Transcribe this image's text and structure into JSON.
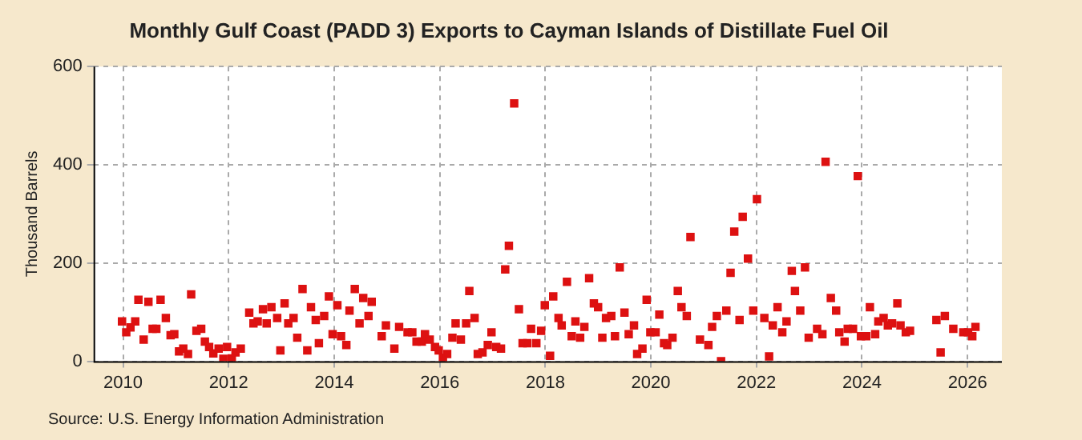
{
  "chart_data": {
    "type": "scatter",
    "title": "Monthly Gulf Coast (PADD 3) Exports to Cayman Islands of Distillate Fuel Oil",
    "ylabel": "Thousand Barrels",
    "annotations": [
      "Source: U.S. Energy Information Administration"
    ],
    "marker": "square",
    "grid": true,
    "color": "#dd1111",
    "x": [
      2009.98,
      2010.06,
      2010.14,
      2010.23,
      2010.29,
      2010.39,
      2010.48,
      2010.56,
      2010.63,
      2010.71,
      2010.81,
      2010.9,
      2010.97,
      2011.06,
      2011.14,
      2011.23,
      2011.29,
      2011.39,
      2011.48,
      2011.55,
      2011.63,
      2011.71,
      2011.81,
      2011.9,
      2011.97,
      2012.06,
      2012.13,
      2012.23,
      2012.39,
      2012.47,
      2012.55,
      2012.65,
      2012.72,
      2012.81,
      2012.92,
      2012.98,
      2013.06,
      2013.13,
      2013.23,
      2013.3,
      2013.4,
      2013.49,
      2013.56,
      2013.65,
      2013.71,
      2013.81,
      2013.9,
      2013.97,
      2014.06,
      2014.13,
      2014.23,
      2014.29,
      2014.39,
      2014.48,
      2014.55,
      2014.65,
      2014.71,
      2014.9,
      2014.98,
      2015.14,
      2015.23,
      2015.39,
      2015.48,
      2015.56,
      2015.66,
      2015.72,
      2015.81,
      2015.91,
      2015.98,
      2016.06,
      2016.14,
      2016.24,
      2016.3,
      2016.4,
      2016.5,
      2016.56,
      2016.66,
      2016.72,
      2016.81,
      2016.91,
      2016.98,
      2017.07,
      2017.16,
      2017.24,
      2017.31,
      2017.41,
      2017.5,
      2017.57,
      2017.66,
      2017.73,
      2017.83,
      2017.92,
      2017.99,
      2018.09,
      2018.15,
      2018.25,
      2018.31,
      2018.41,
      2018.5,
      2018.57,
      2018.66,
      2018.74,
      2018.83,
      2018.92,
      2019.0,
      2019.08,
      2019.15,
      2019.25,
      2019.32,
      2019.41,
      2019.5,
      2019.58,
      2019.68,
      2019.74,
      2019.84,
      2019.92,
      2019.99,
      2020.09,
      2020.16,
      2020.25,
      2020.31,
      2020.41,
      2020.51,
      2020.58,
      2020.68,
      2020.75,
      2020.93,
      2021.09,
      2021.16,
      2021.25,
      2021.33,
      2021.43,
      2021.51,
      2021.58,
      2021.68,
      2021.74,
      2021.84,
      2021.94,
      2022.01,
      2022.15,
      2022.24,
      2022.31,
      2022.4,
      2022.49,
      2022.57,
      2022.67,
      2022.73,
      2022.83,
      2022.92,
      2022.99,
      2023.15,
      2023.25,
      2023.31,
      2023.41,
      2023.51,
      2023.57,
      2023.67,
      2023.73,
      2023.83,
      2023.92,
      2023.98,
      2024.08,
      2024.15,
      2024.25,
      2024.31,
      2024.41,
      2024.49,
      2024.57,
      2024.67,
      2024.73,
      2024.83,
      2024.91,
      2025.41,
      2025.49,
      2025.57,
      2025.73,
      2025.92,
      2026.01,
      2026.09,
      2026.15
    ],
    "values": [
      81,
      59,
      69,
      81,
      125,
      44,
      121,
      66,
      66,
      125,
      88,
      53,
      55,
      20,
      26,
      15,
      136,
      62,
      66,
      40,
      29,
      16,
      26,
      5,
      29,
      6,
      18,
      26,
      99,
      77,
      81,
      106,
      77,
      110,
      88,
      22,
      118,
      77,
      88,
      48,
      147,
      22,
      110,
      84,
      37,
      92,
      132,
      55,
      114,
      51,
      33,
      103,
      147,
      77,
      129,
      92,
      121,
      51,
      73,
      26,
      70,
      59,
      59,
      40,
      40,
      55,
      44,
      29,
      22,
      7,
      15,
      48,
      77,
      44,
      77,
      143,
      88,
      15,
      18,
      33,
      59,
      29,
      26,
      187,
      235,
      525,
      106,
      37,
      37,
      66,
      37,
      62,
      114,
      11,
      132,
      88,
      73,
      162,
      51,
      81,
      48,
      70,
      169,
      118,
      110,
      48,
      88,
      92,
      51,
      191,
      99,
      55,
      73,
      15,
      26,
      125,
      59,
      59,
      95,
      37,
      33,
      48,
      143,
      110,
      92,
      253,
      44,
      33,
      70,
      92,
      0,
      103,
      180,
      264,
      84,
      294,
      209,
      103,
      330,
      88,
      10,
      73,
      110,
      59,
      81,
      184,
      143,
      103,
      191,
      48,
      66,
      55,
      406,
      129,
      103,
      59,
      40,
      66,
      66,
      377,
      51,
      51,
      110,
      55,
      81,
      88,
      73,
      77,
      118,
      73,
      59,
      62,
      84,
      18,
      92,
      66,
      59,
      59,
      51,
      70
    ],
    "xlim": [
      2009.44,
      2026.65
    ],
    "xticks": [
      2010,
      2012,
      2014,
      2016,
      2018,
      2020,
      2022,
      2024,
      2026
    ],
    "ylim": [
      0,
      600
    ],
    "yticks": [
      0,
      200,
      400,
      600
    ]
  }
}
